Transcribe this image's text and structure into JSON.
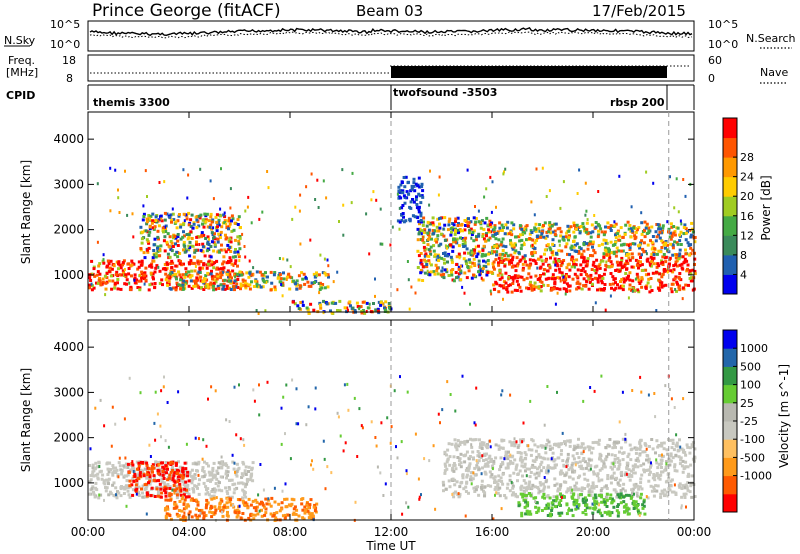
{
  "header": {
    "station": "Prince George (fitACF)",
    "beam": "Beam 03",
    "date": "17/Feb/2015"
  },
  "noise_panel": {
    "left_label": "N.Sky",
    "right_label": "N.Search",
    "left_ticks": [
      "10^5",
      "10^0"
    ],
    "right_ticks": [
      "10^5",
      "10^0"
    ]
  },
  "freq_panel": {
    "left_label_1": "Freq.",
    "left_label_2": "[MHz]",
    "right_label": "Nave",
    "left_ticks": [
      "18",
      "8"
    ],
    "right_ticks": [
      "60",
      "0"
    ]
  },
  "cpid_panel": {
    "label": "CPID",
    "programs": [
      {
        "name": "themis 3300",
        "start_hour": 0
      },
      {
        "name": "twofsound -3503",
        "start_hour": 12
      },
      {
        "name": "rbsp 200",
        "start_hour": 23
      }
    ]
  },
  "x_axis": {
    "title": "Time UT",
    "tick_labels": [
      "00:00",
      "04:00",
      "08:00",
      "12:00",
      "16:00",
      "20:00",
      "00:00"
    ],
    "range_hours": [
      0,
      24
    ],
    "dashed_marks_hours": [
      12,
      23
    ]
  },
  "colors": {
    "power": [
      "#0000ee",
      "#2060b0",
      "#3a8a5a",
      "#44aa44",
      "#a0cc22",
      "#ffcc00",
      "#ff9900",
      "#ff5500",
      "#ff0000"
    ],
    "velocity": [
      "#ff0000",
      "#ff5a00",
      "#ff9a1a",
      "#ffc060",
      "#c8c8c0",
      "#b8b8b0",
      "#66cc33",
      "#339944",
      "#2266aa",
      "#0000ee"
    ]
  },
  "chart_data": [
    {
      "type": "heatmap",
      "title": "Power",
      "ylabel": "Slant Range [km]",
      "xlabel": "Time UT",
      "ylim": [
        180,
        4600
      ],
      "y_ticks": [
        "1000",
        "2000",
        "3000",
        "4000"
      ],
      "colorbar_label": "Power [dB]",
      "colorbar_ticks": [
        "4",
        "8",
        "12",
        "16",
        "20",
        "24",
        "28"
      ],
      "regions": [
        {
          "t": [
            0,
            6
          ],
          "r": [
            700,
            1350
          ],
          "level": "high"
        },
        {
          "t": [
            3,
            9.5
          ],
          "r": [
            700,
            1100
          ],
          "level": "mid"
        },
        {
          "t": [
            2,
            6
          ],
          "r": [
            1400,
            2400
          ],
          "level": "mixed"
        },
        {
          "t": [
            8,
            12
          ],
          "r": [
            180,
            450
          ],
          "level": "mixed"
        },
        {
          "t": [
            13,
            16
          ],
          "r": [
            900,
            2300
          ],
          "level": "mixed"
        },
        {
          "t": [
            16,
            24
          ],
          "r": [
            650,
            1450
          ],
          "level": "high"
        },
        {
          "t": [
            16,
            24
          ],
          "r": [
            1450,
            2200
          ],
          "level": "mid"
        },
        {
          "t": [
            12.2,
            13.2
          ],
          "r": [
            2200,
            3200
          ],
          "level": "low"
        }
      ]
    },
    {
      "type": "heatmap",
      "title": "Velocity",
      "ylabel": "Slant Range [km]",
      "xlabel": "Time UT",
      "ylim": [
        180,
        4600
      ],
      "y_ticks": [
        "1000",
        "2000",
        "3000",
        "4000"
      ],
      "colorbar_label": "Velocity [m s^-1]",
      "colorbar_ticks": [
        "1000",
        "500",
        "100",
        "25",
        "-25",
        "-100",
        "-500",
        "-1000"
      ],
      "regions": [
        {
          "t": [
            0,
            6.5
          ],
          "r": [
            700,
            1500
          ],
          "level": "ground"
        },
        {
          "t": [
            1.5,
            4
          ],
          "r": [
            700,
            1500
          ],
          "level": "negative-strong"
        },
        {
          "t": [
            3,
            9
          ],
          "r": [
            200,
            700
          ],
          "level": "negative"
        },
        {
          "t": [
            14,
            24
          ],
          "r": [
            700,
            2000
          ],
          "level": "ground"
        },
        {
          "t": [
            17,
            22
          ],
          "r": [
            300,
            800
          ],
          "level": "positive"
        }
      ]
    }
  ]
}
